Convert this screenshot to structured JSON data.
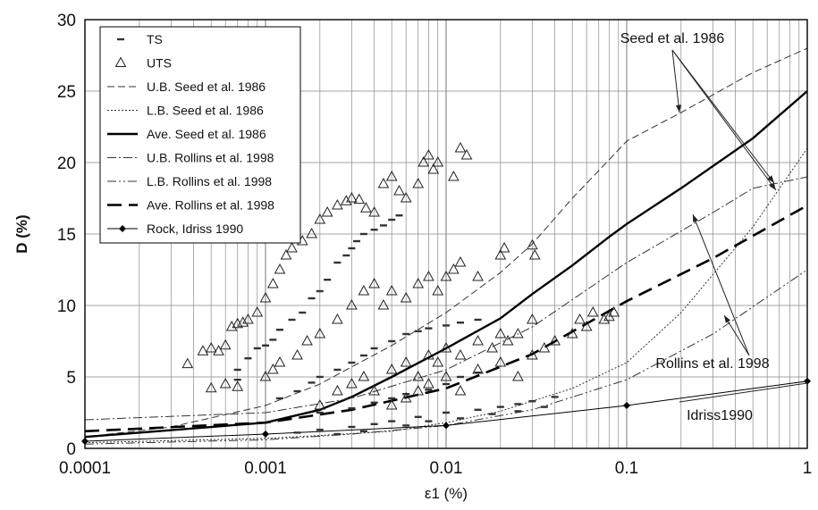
{
  "chart_data": {
    "type": "scatter",
    "xlabel": "ε1 (%)",
    "ylabel": "D (%)",
    "xscale": "log",
    "xlim": [
      0.0001,
      1
    ],
    "ylim": [
      0,
      30
    ],
    "x_ticks": [
      "0.0001",
      "0.001",
      "0.01",
      "0.1",
      "1"
    ],
    "y_ticks": [
      "0",
      "5",
      "10",
      "15",
      "20",
      "25",
      "30"
    ],
    "grid": "vertical minor log lines, horizontal at each 5",
    "legend_position": "top-left",
    "legend": [
      {
        "label": "TS",
        "style": "dash-marker"
      },
      {
        "label": "UTS",
        "style": "triangle-marker"
      },
      {
        "label": "U.B. Seed et al. 1986",
        "style": "dashed"
      },
      {
        "label": "L.B. Seed et al. 1986",
        "style": "dotted"
      },
      {
        "label": "Ave. Seed et al. 1986",
        "style": "solid-thick"
      },
      {
        "label": "U.B. Rollins et al. 1998",
        "style": "dash-dot"
      },
      {
        "label": "L.B. Rollins et al. 1998",
        "style": "dash-dot-dot"
      },
      {
        "label": "Ave. Rollins et al. 1998",
        "style": "long-dash-thick"
      },
      {
        "label": "Rock, Idriss 1990",
        "style": "line-diamond"
      }
    ],
    "annotations": [
      {
        "text": "Seed et al. 1986",
        "position": "top-right"
      },
      {
        "text": "Rollins et al. 1998",
        "position": "right"
      },
      {
        "text": "Idriss1990",
        "position": "bottom-right"
      }
    ],
    "curves": [
      {
        "name": "U.B. Seed et al. 1986",
        "x": [
          0.0001,
          0.0003,
          0.001,
          0.002,
          0.003,
          0.005,
          0.01,
          0.02,
          0.03,
          0.05,
          0.08,
          0.1,
          0.2,
          0.5,
          1
        ],
        "y": [
          0.8,
          1.5,
          3,
          4.5,
          5.7,
          7.2,
          9.5,
          12.3,
          14.3,
          17.5,
          20.2,
          21.5,
          23.5,
          26.3,
          28
        ]
      },
      {
        "name": "L.B. Seed et al. 1986",
        "x": [
          0.0001,
          0.001,
          0.002,
          0.005,
          0.01,
          0.02,
          0.05,
          0.1,
          0.2,
          0.5,
          1
        ],
        "y": [
          0.4,
          0.7,
          0.9,
          1.2,
          1.8,
          2.6,
          4.2,
          6,
          9.5,
          15.5,
          21
        ]
      },
      {
        "name": "Ave. Seed et al. 1986",
        "x": [
          0.0001,
          0.001,
          0.002,
          0.003,
          0.005,
          0.01,
          0.02,
          0.03,
          0.05,
          0.08,
          0.1,
          0.2,
          0.5,
          1
        ],
        "y": [
          0.8,
          1.8,
          2.7,
          3.6,
          5,
          7,
          9.1,
          10.8,
          12.8,
          14.8,
          15.7,
          18.2,
          21.7,
          25
        ]
      },
      {
        "name": "U.B. Rollins et al. 1998",
        "x": [
          0.0001,
          0.001,
          0.003,
          0.01,
          0.03,
          0.1,
          0.3,
          0.5,
          1
        ],
        "y": [
          2,
          2.5,
          3.5,
          5.5,
          8.5,
          13,
          16.5,
          18.2,
          19
        ]
      },
      {
        "name": "L.B. Rollins et al. 1998",
        "x": [
          0.0001,
          0.001,
          0.003,
          0.01,
          0.03,
          0.1,
          0.3,
          1
        ],
        "y": [
          0.3,
          0.6,
          1,
          1.6,
          2.7,
          4.8,
          8,
          12.5
        ]
      },
      {
        "name": "Ave. Rollins et al. 1998",
        "x": [
          0.0001,
          0.001,
          0.003,
          0.01,
          0.03,
          0.1,
          0.3,
          1
        ],
        "y": [
          1.2,
          1.8,
          2.7,
          4.2,
          6.6,
          10.3,
          13.3,
          17
        ]
      },
      {
        "name": "Rock, Idriss 1990",
        "x": [
          0.0001,
          0.001,
          0.01,
          0.1,
          1
        ],
        "y": [
          0.5,
          1,
          1.6,
          3,
          4.7
        ],
        "markers": true
      }
    ],
    "series": [
      {
        "name": "TS",
        "points": [
          [
            0.0007,
            4.8
          ],
          [
            0.0007,
            5.5
          ],
          [
            0.0008,
            6.3
          ],
          [
            0.0009,
            7
          ],
          [
            0.001,
            7.2
          ],
          [
            0.0011,
            7.6
          ],
          [
            0.0012,
            8.3
          ],
          [
            0.0014,
            9
          ],
          [
            0.0016,
            9.5
          ],
          [
            0.0018,
            10.5
          ],
          [
            0.002,
            11
          ],
          [
            0.0022,
            11.8
          ],
          [
            0.0025,
            13
          ],
          [
            0.0028,
            13.5
          ],
          [
            0.003,
            14
          ],
          [
            0.0032,
            14.5
          ],
          [
            0.0035,
            15
          ],
          [
            0.004,
            15.3
          ],
          [
            0.0045,
            15.6
          ],
          [
            0.005,
            16
          ],
          [
            0.0055,
            16.3
          ],
          [
            0.0012,
            3.5
          ],
          [
            0.0015,
            4
          ],
          [
            0.0018,
            4.6
          ],
          [
            0.002,
            5
          ],
          [
            0.0025,
            5.5
          ],
          [
            0.003,
            6
          ],
          [
            0.0035,
            6.5
          ],
          [
            0.004,
            7
          ],
          [
            0.005,
            7.5
          ],
          [
            0.006,
            8
          ],
          [
            0.007,
            8.2
          ],
          [
            0.008,
            8.4
          ],
          [
            0.01,
            8.6
          ],
          [
            0.012,
            8.8
          ],
          [
            0.015,
            9
          ],
          [
            0.002,
            2.5
          ],
          [
            0.003,
            2.8
          ],
          [
            0.004,
            3.2
          ],
          [
            0.005,
            3.5
          ],
          [
            0.006,
            3.8
          ],
          [
            0.008,
            4.1
          ],
          [
            0.01,
            4.5
          ],
          [
            0.012,
            5
          ],
          [
            0.015,
            5.3
          ],
          [
            0.0015,
            1.1
          ],
          [
            0.002,
            1.3
          ],
          [
            0.003,
            1.5
          ],
          [
            0.004,
            1.7
          ],
          [
            0.005,
            1.9
          ],
          [
            0.007,
            2.2
          ],
          [
            0.01,
            2.5
          ],
          [
            0.015,
            2.7
          ],
          [
            0.02,
            2.9
          ],
          [
            0.025,
            3.1
          ],
          [
            0.03,
            3.3
          ],
          [
            0.04,
            3.6
          ],
          [
            0.0025,
            1
          ],
          [
            0.0035,
            1.2
          ],
          [
            0.006,
            1.6
          ],
          [
            0.008,
            1.9
          ],
          [
            0.012,
            2.1
          ],
          [
            0.018,
            2.4
          ],
          [
            0.025,
            2.6
          ],
          [
            0.035,
            2.9
          ]
        ]
      },
      {
        "name": "UTS",
        "points": [
          [
            0.00037,
            5.9
          ],
          [
            0.00045,
            6.8
          ],
          [
            0.0005,
            7
          ],
          [
            0.00055,
            6.8
          ],
          [
            0.0006,
            7.2
          ],
          [
            0.00065,
            8.5
          ],
          [
            0.0007,
            8.7
          ],
          [
            0.00075,
            8.8
          ],
          [
            0.0008,
            9
          ],
          [
            0.0009,
            9.5
          ],
          [
            0.001,
            10.5
          ],
          [
            0.0011,
            11.5
          ],
          [
            0.0012,
            12.5
          ],
          [
            0.0013,
            13.5
          ],
          [
            0.0014,
            14
          ],
          [
            0.0016,
            14.5
          ],
          [
            0.0018,
            15
          ],
          [
            0.002,
            16
          ],
          [
            0.0022,
            16.5
          ],
          [
            0.0025,
            17
          ],
          [
            0.0028,
            17.3
          ],
          [
            0.003,
            17.5
          ],
          [
            0.0033,
            17.4
          ],
          [
            0.0036,
            16.8
          ],
          [
            0.004,
            16.5
          ],
          [
            0.0045,
            18.5
          ],
          [
            0.005,
            19
          ],
          [
            0.0055,
            18
          ],
          [
            0.006,
            17.5
          ],
          [
            0.007,
            18.5
          ],
          [
            0.0075,
            20
          ],
          [
            0.008,
            20.5
          ],
          [
            0.0085,
            19.5
          ],
          [
            0.009,
            20
          ],
          [
            0.011,
            19
          ],
          [
            0.012,
            21
          ],
          [
            0.013,
            20.5
          ],
          [
            0.0005,
            4.2
          ],
          [
            0.0006,
            4.5
          ],
          [
            0.0007,
            4.3
          ],
          [
            0.001,
            5
          ],
          [
            0.0011,
            5.5
          ],
          [
            0.0012,
            6
          ],
          [
            0.0015,
            6.5
          ],
          [
            0.0017,
            7.5
          ],
          [
            0.002,
            8
          ],
          [
            0.0025,
            9
          ],
          [
            0.003,
            10
          ],
          [
            0.0035,
            11
          ],
          [
            0.004,
            11.5
          ],
          [
            0.0045,
            10
          ],
          [
            0.005,
            11
          ],
          [
            0.006,
            10.5
          ],
          [
            0.007,
            11.5
          ],
          [
            0.008,
            12
          ],
          [
            0.009,
            11
          ],
          [
            0.01,
            12
          ],
          [
            0.011,
            12.5
          ],
          [
            0.012,
            13
          ],
          [
            0.015,
            12
          ],
          [
            0.02,
            13.5
          ],
          [
            0.021,
            14
          ],
          [
            0.03,
            14.2
          ],
          [
            0.031,
            13.5
          ],
          [
            0.002,
            3
          ],
          [
            0.0025,
            4
          ],
          [
            0.003,
            4.5
          ],
          [
            0.0035,
            5
          ],
          [
            0.004,
            4
          ],
          [
            0.005,
            5.5
          ],
          [
            0.006,
            6
          ],
          [
            0.007,
            5
          ],
          [
            0.008,
            6.5
          ],
          [
            0.009,
            6
          ],
          [
            0.01,
            7
          ],
          [
            0.012,
            6.5
          ],
          [
            0.015,
            7.5
          ],
          [
            0.018,
            7
          ],
          [
            0.02,
            8
          ],
          [
            0.022,
            7.5
          ],
          [
            0.025,
            8
          ],
          [
            0.03,
            9
          ],
          [
            0.005,
            3
          ],
          [
            0.006,
            3.5
          ],
          [
            0.007,
            4
          ],
          [
            0.008,
            4.5
          ],
          [
            0.01,
            5
          ],
          [
            0.012,
            4
          ],
          [
            0.015,
            5.5
          ],
          [
            0.02,
            6
          ],
          [
            0.025,
            5
          ],
          [
            0.03,
            6.5
          ],
          [
            0.035,
            7
          ],
          [
            0.04,
            7.5
          ],
          [
            0.05,
            8
          ],
          [
            0.055,
            9
          ],
          [
            0.06,
            8.5
          ],
          [
            0.065,
            9.5
          ],
          [
            0.075,
            9
          ],
          [
            0.08,
            9.2
          ],
          [
            0.085,
            9.5
          ]
        ]
      }
    ]
  }
}
